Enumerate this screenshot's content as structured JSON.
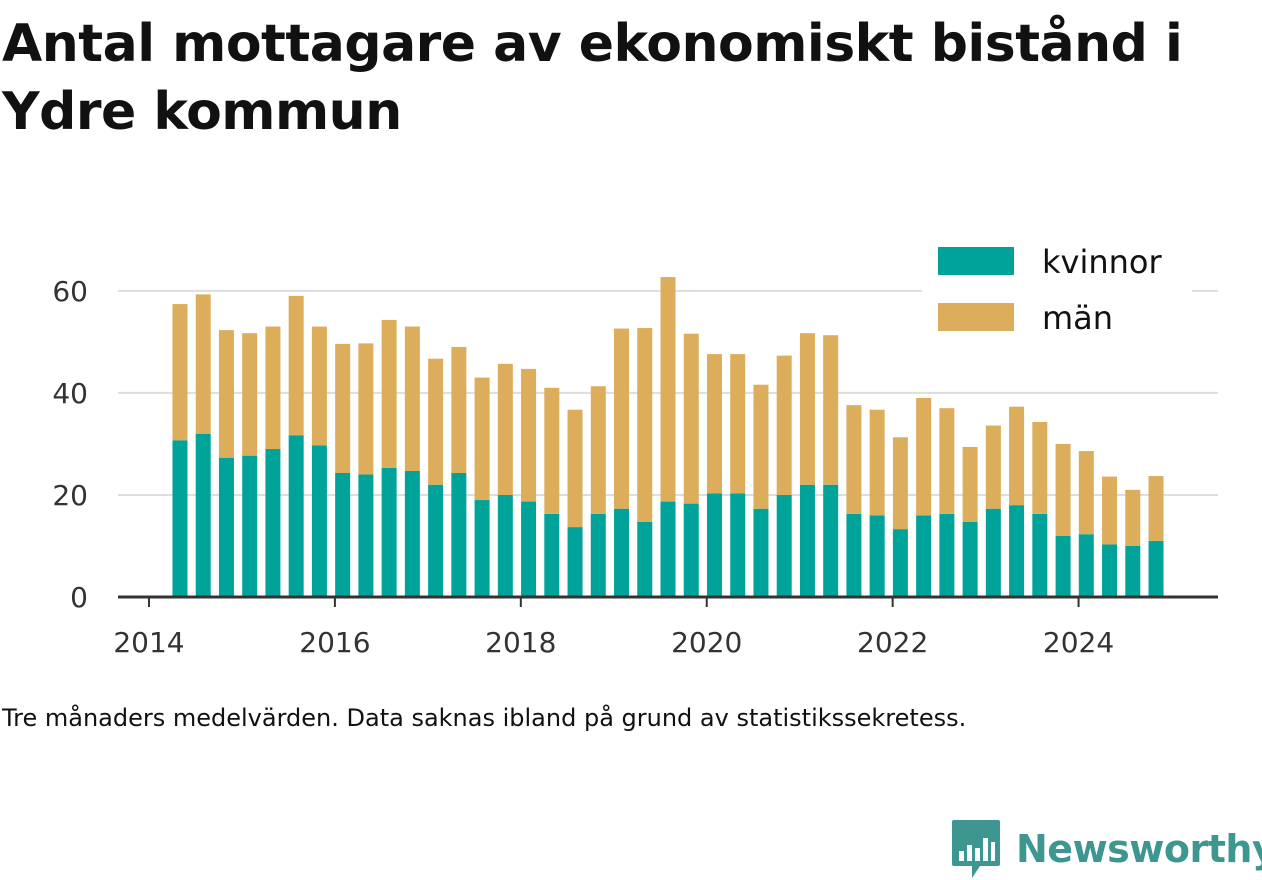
{
  "title": "Antal mottagare av ekonomiskt bistånd i Ydre kommun",
  "caption": "Tre månaders medelvärden. Data saknas ibland på grund av statistikssekretess.",
  "logo": {
    "text": "Newsworthy",
    "icon": "bar-chart-speech-bubble-icon",
    "color": "#3d9690"
  },
  "chart_data": {
    "type": "bar",
    "stacked": true,
    "x": [
      "2014-05",
      "2014-08",
      "2014-11",
      "2015-02",
      "2015-05",
      "2015-08",
      "2015-11",
      "2016-02",
      "2016-05",
      "2016-08",
      "2016-11",
      "2017-02",
      "2017-05",
      "2017-08",
      "2017-11",
      "2018-02",
      "2018-05",
      "2018-08",
      "2018-11",
      "2019-02",
      "2019-05",
      "2019-08",
      "2019-11",
      "2020-02",
      "2020-05",
      "2020-08",
      "2020-11",
      "2021-02",
      "2021-05",
      "2021-08",
      "2021-11",
      "2022-02",
      "2022-05",
      "2022-08",
      "2022-11",
      "2023-02",
      "2023-05",
      "2023-08",
      "2023-11",
      "2024-02",
      "2024-05",
      "2024-08",
      "2024-11"
    ],
    "series": [
      {
        "name": "kvinnor",
        "color": "#00a39a",
        "values": [
          30.7,
          32.0,
          27.3,
          27.7,
          29.0,
          31.7,
          29.7,
          24.3,
          24.0,
          25.3,
          24.7,
          22.0,
          24.3,
          19.0,
          20.0,
          18.7,
          16.3,
          13.7,
          16.3,
          17.3,
          14.7,
          18.7,
          18.3,
          20.3,
          20.3,
          17.3,
          20.0,
          22.0,
          22.0,
          16.3,
          16.0,
          13.3,
          16.0,
          16.3,
          14.7,
          17.3,
          18.0,
          16.3,
          12.0,
          12.3,
          10.3,
          10.0,
          11.0
        ]
      },
      {
        "name": "män",
        "color": "#dcad5b",
        "values": [
          26.7,
          27.3,
          25.0,
          24.0,
          24.0,
          27.3,
          23.3,
          25.3,
          25.7,
          29.0,
          28.3,
          24.7,
          24.7,
          24.0,
          25.7,
          26.0,
          24.7,
          23.0,
          25.0,
          35.3,
          38.0,
          44.0,
          33.3,
          27.3,
          27.3,
          24.3,
          27.3,
          29.7,
          29.3,
          21.3,
          20.7,
          18.0,
          23.0,
          20.7,
          14.7,
          16.3,
          19.3,
          18.0,
          18.0,
          16.3,
          13.3,
          11.0,
          12.7
        ]
      }
    ],
    "yticks": [
      0,
      20,
      40,
      60
    ],
    "ylim": [
      0,
      68
    ],
    "xticks": [
      "2014",
      "2016",
      "2018",
      "2020",
      "2022",
      "2024"
    ],
    "xlim": [
      "2013-09",
      "2025-07"
    ],
    "grid": true,
    "legend_position": "top-right",
    "xlabel": "",
    "ylabel": ""
  }
}
